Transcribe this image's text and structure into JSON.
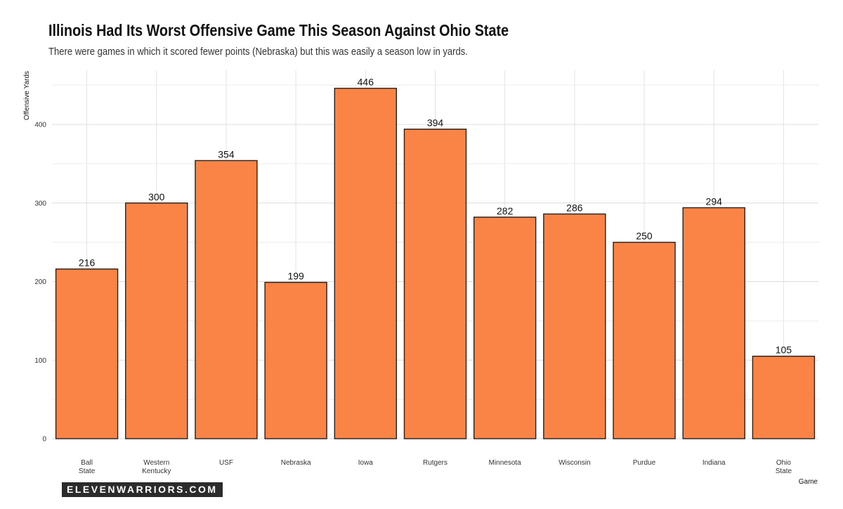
{
  "chart_data": {
    "type": "bar",
    "title": "Illinois Had Its Worst Offensive Game This Season Against Ohio State",
    "subtitle": "There were games in which it scored fewer points (Nebraska) but this was easily a season low in yards.",
    "xlabel": "Game",
    "ylabel": "Offensive Yards",
    "categories": [
      [
        "Ball",
        "State"
      ],
      [
        "Western",
        "Kentucky"
      ],
      [
        "USF"
      ],
      [
        "Nebraska"
      ],
      [
        "Iowa"
      ],
      [
        "Rutgers"
      ],
      [
        "Minnesota"
      ],
      [
        "Wisconsin"
      ],
      [
        "Purdue"
      ],
      [
        "Indiana"
      ],
      [
        "Ohio",
        "State"
      ]
    ],
    "values": [
      216,
      300,
      354,
      199,
      446,
      394,
      282,
      286,
      250,
      294,
      105
    ],
    "ylim": [
      0,
      450
    ],
    "yticks": [
      0,
      100,
      200,
      300,
      400
    ],
    "grid": true,
    "bar_color": "#f98445",
    "bar_edge_color": "#222222"
  },
  "brand": {
    "logo_text": "ELEVENWARRIORS.COM"
  }
}
